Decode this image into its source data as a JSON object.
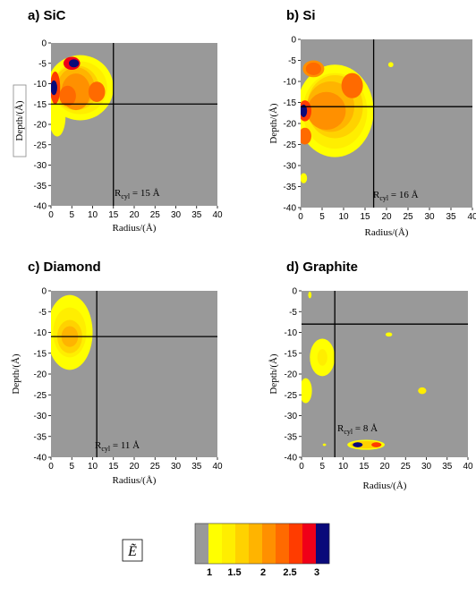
{
  "chart_data": [
    {
      "type": "heatmap",
      "title": "a)  SiC",
      "xlabel": "Radius/(Å)",
      "ylabel": "Depth/(Å)",
      "xlim": [
        0,
        40
      ],
      "ylim": [
        -40,
        0
      ],
      "xticks": [
        0,
        5,
        10,
        15,
        20,
        25,
        30,
        35,
        40
      ],
      "yticks": [
        0,
        -5,
        -10,
        -15,
        -20,
        -25,
        -30,
        -35,
        -40
      ],
      "annotation": {
        "prefix": "R",
        "sub": "cyl",
        "suffix": " = 15 Å"
      },
      "cross": {
        "x": 15,
        "y": -15
      },
      "blobs": [
        {
          "x": 7,
          "y": -11,
          "rx": 8,
          "ry": 8,
          "level": 1
        },
        {
          "x": 1.5,
          "y": -18,
          "rx": 2,
          "ry": 5,
          "level": 1
        },
        {
          "x": 7,
          "y": -11,
          "rx": 6.5,
          "ry": 6.5,
          "level": 2
        },
        {
          "x": 6,
          "y": -11,
          "rx": 5.5,
          "ry": 5.5,
          "level": 3
        },
        {
          "x": 6,
          "y": -11,
          "rx": 4.5,
          "ry": 5,
          "level": 4
        },
        {
          "x": 6,
          "y": -12,
          "rx": 3.5,
          "ry": 4.5,
          "level": 5
        },
        {
          "x": 11,
          "y": -12,
          "rx": 2,
          "ry": 2.5,
          "level": 6
        },
        {
          "x": 4,
          "y": -13,
          "rx": 2,
          "ry": 2.5,
          "level": 6
        },
        {
          "x": 1,
          "y": -11,
          "rx": 1.2,
          "ry": 4,
          "level": 7
        },
        {
          "x": 5,
          "y": -5,
          "rx": 2,
          "ry": 1.6,
          "level": 8
        },
        {
          "x": 5.5,
          "y": -5,
          "rx": 1.2,
          "ry": 1,
          "level": 9
        },
        {
          "x": 0.7,
          "y": -11,
          "rx": 0.8,
          "ry": 1.8,
          "level": 9
        }
      ]
    },
    {
      "type": "heatmap",
      "title": "b) Si",
      "xlabel": "Radius/(Å)",
      "ylabel": "Depth/(Å)",
      "xlim": [
        0,
        40
      ],
      "ylim": [
        -40,
        0
      ],
      "xticks": [
        0,
        5,
        10,
        15,
        20,
        25,
        30,
        35,
        40
      ],
      "yticks": [
        0,
        -5,
        -10,
        -15,
        -20,
        -25,
        -30,
        -35,
        -40
      ],
      "annotation": {
        "prefix": "R",
        "sub": "cyl",
        "suffix": " = 16 Å"
      },
      "cross": {
        "x": 17,
        "y": -16
      },
      "blobs": [
        {
          "x": 8,
          "y": -17,
          "rx": 9,
          "ry": 11,
          "level": 1
        },
        {
          "x": 8,
          "y": -17,
          "rx": 7.5,
          "ry": 9,
          "level": 2
        },
        {
          "x": 8,
          "y": -16,
          "rx": 6.5,
          "ry": 7.5,
          "level": 3
        },
        {
          "x": 7,
          "y": -16,
          "rx": 5.5,
          "ry": 6,
          "level": 4
        },
        {
          "x": 6,
          "y": -17,
          "rx": 4.5,
          "ry": 4.5,
          "level": 5
        },
        {
          "x": 3,
          "y": -7,
          "rx": 2.5,
          "ry": 2,
          "level": 5
        },
        {
          "x": 12,
          "y": -11,
          "rx": 2.5,
          "ry": 3,
          "level": 6
        },
        {
          "x": 3,
          "y": -7,
          "rx": 1.8,
          "ry": 1.5,
          "level": 6
        },
        {
          "x": 1,
          "y": -23,
          "rx": 1.5,
          "ry": 2,
          "level": 6
        },
        {
          "x": 1,
          "y": -17,
          "rx": 1.5,
          "ry": 2.5,
          "level": 7
        },
        {
          "x": 0.7,
          "y": -17,
          "rx": 0.8,
          "ry": 1.5,
          "level": 9
        },
        {
          "x": 21,
          "y": -6,
          "rx": 0.6,
          "ry": 0.6,
          "level": 1
        },
        {
          "x": 0.7,
          "y": -33,
          "rx": 0.8,
          "ry": 1.2,
          "level": 1
        }
      ]
    },
    {
      "type": "heatmap",
      "title": "c) Diamond",
      "xlabel": "Radius/(Å)",
      "ylabel": "Depth/(Å)",
      "xlim": [
        0,
        40
      ],
      "ylim": [
        -40,
        0
      ],
      "xticks": [
        0,
        5,
        10,
        15,
        20,
        25,
        30,
        35,
        40
      ],
      "yticks": [
        0,
        -5,
        -10,
        -15,
        -20,
        -25,
        -30,
        -35,
        -40
      ],
      "annotation": {
        "prefix": "R",
        "sub": "cyl",
        "suffix": " = 11 Å"
      },
      "cross": {
        "x": 11,
        "y": -11
      },
      "blobs": [
        {
          "x": 4.5,
          "y": -10,
          "rx": 5.5,
          "ry": 9,
          "level": 1
        },
        {
          "x": 4.5,
          "y": -10,
          "rx": 4,
          "ry": 6,
          "level": 2
        },
        {
          "x": 4.5,
          "y": -11,
          "rx": 3,
          "ry": 4,
          "level": 3
        },
        {
          "x": 4.5,
          "y": -11,
          "rx": 2,
          "ry": 2.5,
          "level": 4
        }
      ]
    },
    {
      "type": "heatmap",
      "title": "d) Graphite",
      "xlabel": "Radius/(Å)",
      "ylabel": "Depth/(Å)",
      "xlim": [
        0,
        40
      ],
      "ylim": [
        -40,
        0
      ],
      "xticks": [
        0,
        5,
        10,
        15,
        20,
        25,
        30,
        35,
        40
      ],
      "yticks": [
        0,
        -5,
        -10,
        -15,
        -20,
        -25,
        -30,
        -35,
        -40
      ],
      "annotation": {
        "prefix": "R",
        "sub": "cyl",
        "suffix": " = 8 Å"
      },
      "cross": {
        "x": 8,
        "y": -8
      },
      "blobs": [
        {
          "x": 5,
          "y": -16,
          "rx": 3,
          "ry": 4.5,
          "level": 1
        },
        {
          "x": 5,
          "y": -16,
          "rx": 1.2,
          "ry": 2,
          "level": 2
        },
        {
          "x": 1,
          "y": -24,
          "rx": 1.5,
          "ry": 3,
          "level": 1
        },
        {
          "x": 2,
          "y": -1,
          "rx": 0.4,
          "ry": 0.8,
          "level": 1
        },
        {
          "x": 21,
          "y": -10.5,
          "rx": 0.8,
          "ry": 0.5,
          "level": 1
        },
        {
          "x": 29,
          "y": -24,
          "rx": 1,
          "ry": 0.8,
          "level": 2
        },
        {
          "x": 5.5,
          "y": -37,
          "rx": 0.4,
          "ry": 0.3,
          "level": 1
        },
        {
          "x": 15.5,
          "y": -37,
          "rx": 4.5,
          "ry": 1.2,
          "level": 1
        },
        {
          "x": 15.5,
          "y": -37,
          "rx": 3.8,
          "ry": 0.9,
          "level": 3
        },
        {
          "x": 13.5,
          "y": -37,
          "rx": 1.2,
          "ry": 0.6,
          "level": 9
        },
        {
          "x": 18,
          "y": -37,
          "rx": 1.2,
          "ry": 0.6,
          "level": 7
        }
      ]
    }
  ],
  "colorbar": {
    "symbol": "Ẽ",
    "tick_labels": [
      "1",
      "1.5",
      "2",
      "2.5",
      "3"
    ],
    "colors": [
      "#999999",
      "#ffff00",
      "#ffee00",
      "#ffd200",
      "#ffb400",
      "#ff9000",
      "#ff6a00",
      "#ff3c00",
      "#f00018",
      "#0a0a7a"
    ]
  }
}
